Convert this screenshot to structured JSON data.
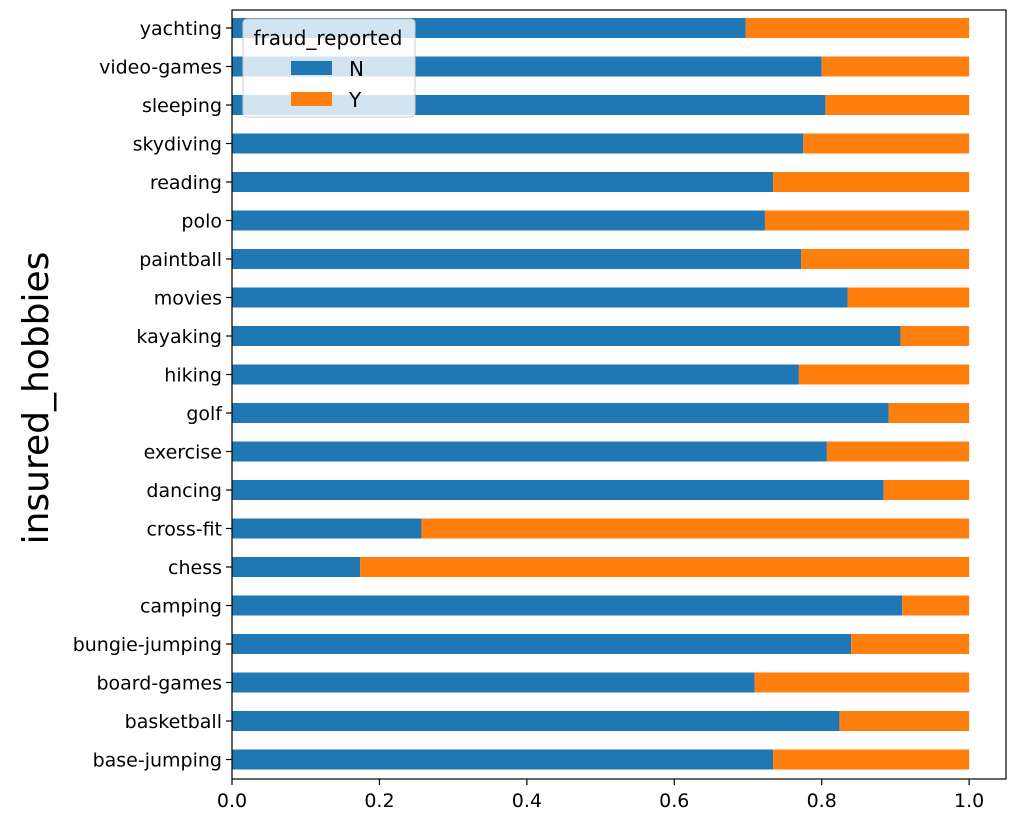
{
  "chart_data": {
    "type": "bar",
    "orientation": "horizontal",
    "stacked": true,
    "ylabel": "insured_hobbies",
    "xlabel": "",
    "xlim": [
      0.0,
      1.05
    ],
    "x_ticks": [
      "0.0",
      "0.2",
      "0.4",
      "0.6",
      "0.8",
      "1.0"
    ],
    "x_tick_values": [
      0.0,
      0.2,
      0.4,
      0.6,
      0.8,
      1.0
    ],
    "grid": false,
    "legend": {
      "title": "fraud_reported",
      "placement": "upper-left"
    },
    "categories": [
      "base-jumping",
      "basketball",
      "board-games",
      "bungie-jumping",
      "camping",
      "chess",
      "cross-fit",
      "dancing",
      "exercise",
      "golf",
      "hiking",
      "kayaking",
      "movies",
      "paintball",
      "polo",
      "reading",
      "skydiving",
      "sleeping",
      "video-games",
      "yachting"
    ],
    "series": [
      {
        "name": "N",
        "color": "#1f77b4",
        "values": [
          0.734,
          0.824,
          0.709,
          0.84,
          0.909,
          0.174,
          0.257,
          0.884,
          0.807,
          0.891,
          0.769,
          0.907,
          0.835,
          0.772,
          0.723,
          0.734,
          0.775,
          0.805,
          0.8,
          0.697
        ]
      },
      {
        "name": "Y",
        "color": "#ff7f0e",
        "values": [
          0.266,
          0.176,
          0.291,
          0.16,
          0.091,
          0.826,
          0.743,
          0.116,
          0.193,
          0.109,
          0.231,
          0.093,
          0.165,
          0.228,
          0.277,
          0.266,
          0.225,
          0.195,
          0.2,
          0.303
        ]
      }
    ]
  }
}
